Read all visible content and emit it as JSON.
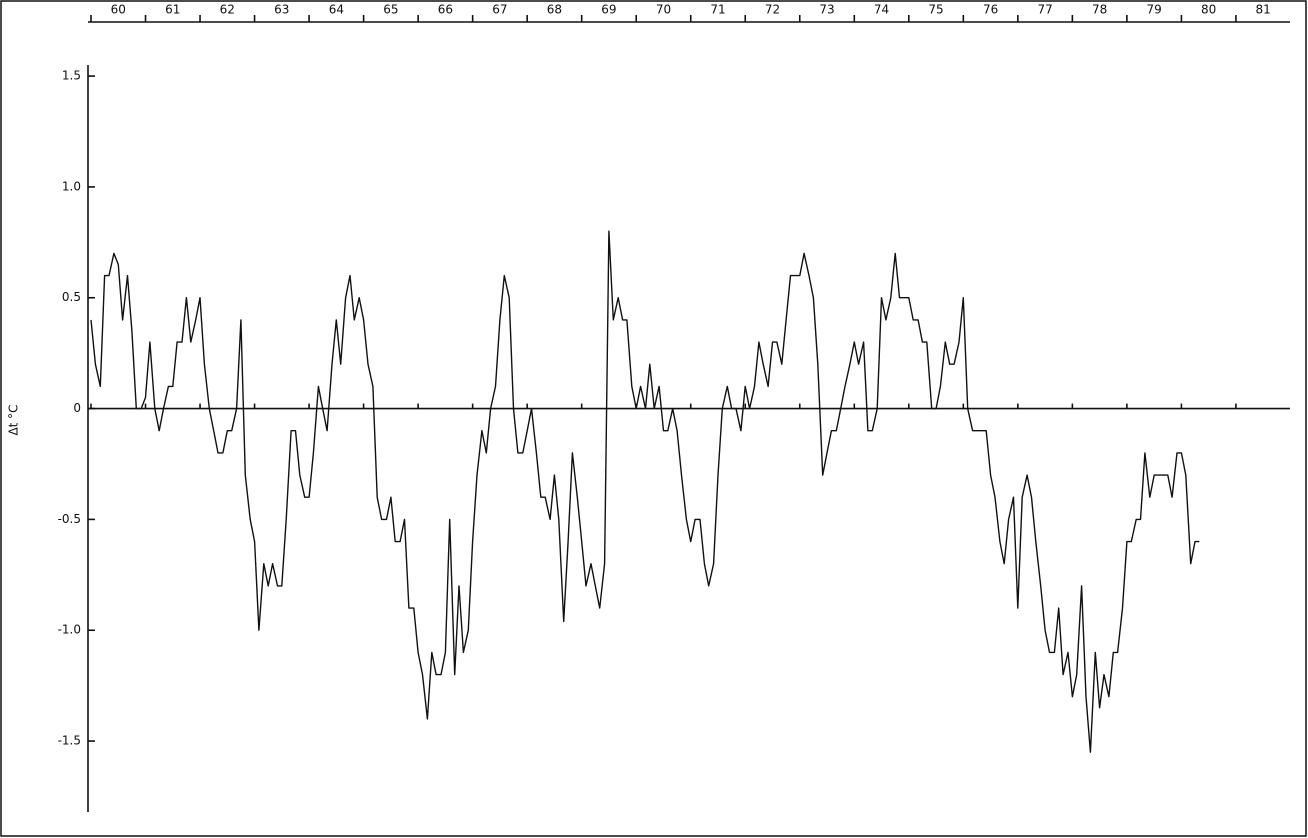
{
  "chart_data": {
    "type": "line",
    "ylabel": "Δt °C",
    "color": "#111111",
    "grid": false,
    "xlim": [
      60,
      81.9
    ],
    "xticks": [
      60,
      61,
      62,
      63,
      64,
      65,
      66,
      67,
      68,
      69,
      70,
      71,
      72,
      73,
      74,
      75,
      76,
      77,
      78,
      79,
      80,
      81
    ],
    "xtick_labels": [
      "60",
      "61",
      "62",
      "63",
      "64",
      "65",
      "66",
      "67",
      "68",
      "69",
      "70",
      "71",
      "72",
      "73",
      "74",
      "75",
      "76",
      "77",
      "78",
      "79",
      "80",
      "81"
    ],
    "ylim": [
      -1.82,
      1.55
    ],
    "yticks": [
      1.5,
      {
        "value": 1,
        "label": "1.0"
      },
      0.5,
      0,
      -0.5,
      {
        "value": -1,
        "label": "-1.0"
      },
      -1.5
    ],
    "x": [
      60,
      60.08,
      60.17,
      60.25,
      60.33,
      60.42,
      60.5,
      60.58,
      60.67,
      60.75,
      60.83,
      60.92,
      61,
      61.08,
      61.17,
      61.25,
      61.33,
      61.42,
      61.5,
      61.58,
      61.67,
      61.75,
      61.83,
      61.92,
      62,
      62.08,
      62.17,
      62.25,
      62.33,
      62.42,
      62.5,
      62.58,
      62.67,
      62.75,
      62.83,
      62.92,
      63,
      63.08,
      63.17,
      63.25,
      63.33,
      63.42,
      63.5,
      63.58,
      63.67,
      63.75,
      63.83,
      63.92,
      64,
      64.08,
      64.17,
      64.25,
      64.33,
      64.42,
      64.5,
      64.58,
      64.67,
      64.75,
      64.83,
      64.92,
      65,
      65.08,
      65.17,
      65.25,
      65.33,
      65.42,
      65.5,
      65.58,
      65.67,
      65.75,
      65.83,
      65.92,
      66,
      66.08,
      66.17,
      66.25,
      66.33,
      66.42,
      66.5,
      66.58,
      66.67,
      66.75,
      66.83,
      66.92,
      67,
      67.08,
      67.17,
      67.25,
      67.33,
      67.42,
      67.5,
      67.58,
      67.67,
      67.75,
      67.83,
      67.92,
      68,
      68.08,
      68.17,
      68.25,
      68.33,
      68.42,
      68.5,
      68.58,
      68.67,
      68.75,
      68.83,
      68.92,
      69,
      69.08,
      69.17,
      69.25,
      69.33,
      69.42,
      69.5,
      69.58,
      69.67,
      69.75,
      69.83,
      69.92,
      70,
      70.08,
      70.17,
      70.25,
      70.33,
      70.42,
      70.5,
      70.58,
      70.67,
      70.75,
      70.83,
      70.92,
      71,
      71.08,
      71.17,
      71.25,
      71.33,
      71.42,
      71.5,
      71.58,
      71.67,
      71.75,
      71.83,
      71.92,
      72,
      72.08,
      72.17,
      72.25,
      72.33,
      72.42,
      72.5,
      72.58,
      72.67,
      72.75,
      72.83,
      72.92,
      73,
      73.08,
      73.17,
      73.25,
      73.33,
      73.42,
      73.5,
      73.58,
      73.67,
      73.75,
      73.83,
      73.92,
      74,
      74.08,
      74.17,
      74.25,
      74.33,
      74.42,
      74.5,
      74.58,
      74.67,
      74.75,
      74.83,
      74.92,
      75,
      75.08,
      75.17,
      75.25,
      75.33,
      75.42,
      75.5,
      75.58,
      75.67,
      75.75,
      75.83,
      75.92,
      76,
      76.08,
      76.17,
      76.25,
      76.33,
      76.42,
      76.5,
      76.58,
      76.67,
      76.75,
      76.83,
      76.92,
      77,
      77.08,
      77.17,
      77.25,
      77.33,
      77.42,
      77.5,
      77.58,
      77.67,
      77.75,
      77.83,
      77.92,
      78,
      78.08,
      78.17,
      78.25,
      78.33,
      78.42,
      78.5,
      78.58,
      78.67,
      78.75,
      78.83,
      78.92,
      79,
      79.08,
      79.17,
      79.25,
      79.33,
      79.42,
      79.5,
      79.58,
      79.67,
      79.75,
      79.83,
      79.92,
      80,
      80.08,
      80.17,
      80.25,
      80.33
    ],
    "values": [
      0.4,
      0.2,
      0.1,
      0.6,
      0.6,
      0.7,
      0.65,
      0.4,
      0.6,
      0.35,
      0.0,
      0.0,
      0.05,
      0.3,
      0.0,
      -0.1,
      0.0,
      0.1,
      0.1,
      0.3,
      0.3,
      0.5,
      0.3,
      0.4,
      0.5,
      0.2,
      0.0,
      -0.1,
      -0.2,
      -0.2,
      -0.1,
      -0.1,
      0.0,
      0.4,
      -0.3,
      -0.5,
      -0.6,
      -1.0,
      -0.7,
      -0.8,
      -0.7,
      -0.8,
      -0.8,
      -0.5,
      -0.1,
      -0.1,
      -0.3,
      -0.4,
      -0.4,
      -0.2,
      0.1,
      0.0,
      -0.1,
      0.2,
      0.4,
      0.2,
      0.5,
      0.6,
      0.4,
      0.5,
      0.4,
      0.2,
      0.1,
      -0.4,
      -0.5,
      -0.5,
      -0.4,
      -0.6,
      -0.6,
      -0.5,
      -0.9,
      -0.9,
      -1.1,
      -1.2,
      -1.4,
      -1.1,
      -1.2,
      -1.2,
      -1.1,
      -0.5,
      -1.2,
      -0.8,
      -1.1,
      -1.0,
      -0.6,
      -0.3,
      -0.1,
      -0.2,
      0.0,
      0.1,
      0.4,
      0.6,
      0.5,
      0.0,
      -0.2,
      -0.2,
      -0.1,
      0.0,
      -0.2,
      -0.4,
      -0.4,
      -0.5,
      -0.3,
      -0.5,
      -0.96,
      -0.6,
      -0.2,
      -0.4,
      -0.6,
      -0.8,
      -0.7,
      -0.8,
      -0.9,
      -0.7,
      0.8,
      0.4,
      0.5,
      0.4,
      0.4,
      0.1,
      0.0,
      0.1,
      0.0,
      0.2,
      0.0,
      0.1,
      -0.1,
      -0.1,
      0.0,
      -0.1,
      -0.3,
      -0.5,
      -0.6,
      -0.5,
      -0.5,
      -0.7,
      -0.8,
      -0.7,
      -0.3,
      0.0,
      0.1,
      0.0,
      0.0,
      -0.1,
      0.1,
      0.0,
      0.1,
      0.3,
      0.2,
      0.1,
      0.3,
      0.3,
      0.2,
      0.4,
      0.6,
      0.6,
      0.6,
      0.7,
      0.6,
      0.5,
      0.2,
      -0.3,
      -0.2,
      -0.1,
      -0.1,
      0.0,
      0.1,
      0.2,
      0.3,
      0.2,
      0.3,
      -0.1,
      -0.1,
      0.0,
      0.5,
      0.4,
      0.5,
      0.7,
      0.5,
      0.5,
      0.5,
      0.4,
      0.4,
      0.3,
      0.3,
      0.0,
      0.0,
      0.1,
      0.3,
      0.2,
      0.2,
      0.3,
      0.5,
      0.0,
      -0.1,
      -0.1,
      -0.1,
      -0.1,
      -0.3,
      -0.4,
      -0.6,
      -0.7,
      -0.5,
      -0.4,
      -0.9,
      -0.4,
      -0.3,
      -0.4,
      -0.6,
      -0.8,
      -1.0,
      -1.1,
      -1.1,
      -0.9,
      -1.2,
      -1.1,
      -1.3,
      -1.2,
      -0.8,
      -1.3,
      -1.55,
      -1.1,
      -1.35,
      -1.2,
      -1.3,
      -1.1,
      -1.1,
      -0.9,
      -0.6,
      -0.6,
      -0.5,
      -0.5,
      -0.2,
      -0.4,
      -0.3,
      -0.3,
      -0.3,
      -0.3,
      -0.4,
      -0.2,
      -0.2,
      -0.3,
      -0.7,
      -0.6,
      -0.6
    ]
  }
}
